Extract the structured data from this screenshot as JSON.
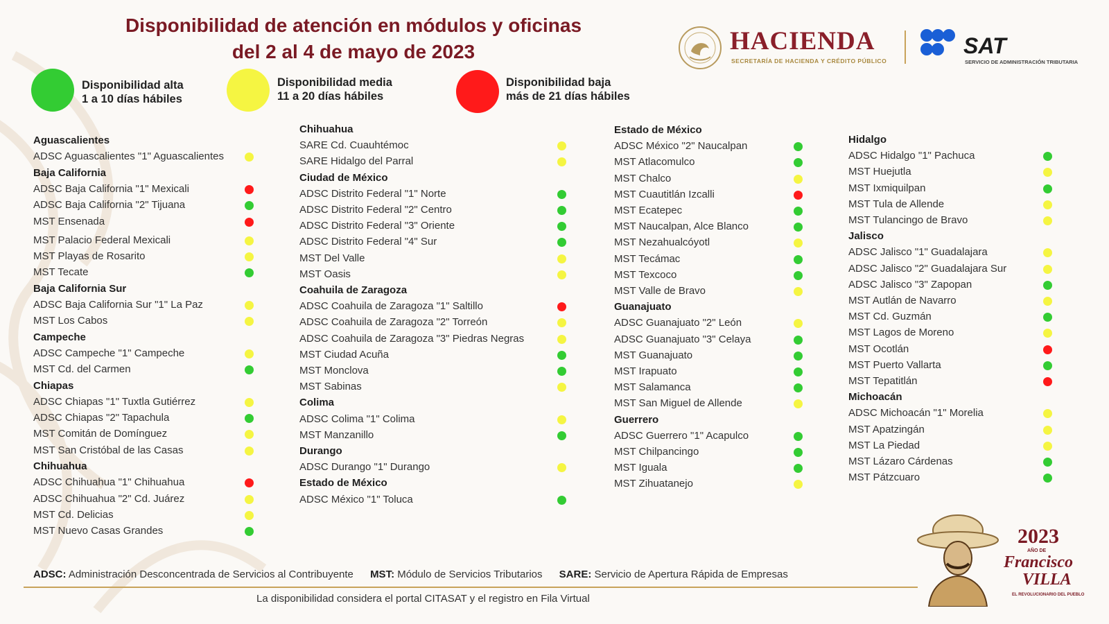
{
  "colors": {
    "alta": "#33cc33",
    "media": "#f5f542",
    "baja": "#ff1a1a",
    "title": "#7a1a24",
    "gold": "#c8a35a"
  },
  "title": {
    "line1": "Disponibilidad de atención en módulos y oficinas",
    "line2": "del 2 al 4 de mayo de 2023"
  },
  "legend": [
    {
      "status": "alta",
      "label1": "Disponibilidad alta",
      "label2": "1 a 10 días hábiles"
    },
    {
      "status": "media",
      "label1": "Disponibilidad media",
      "label2": "11 a 20 días hábiles"
    },
    {
      "status": "baja",
      "label1": "Disponibilidad baja",
      "label2": "más de 21 días hábiles"
    }
  ],
  "logos": {
    "hacienda": "HACIENDA",
    "hacienda_sub": "SECRETARÍA DE HACIENDA Y CRÉDITO PÚBLICO",
    "sat": "SAT",
    "sat_sub": "SERVICIO DE ADMINISTRACIÓN TRIBUTARIA",
    "seal_text": "ESTADOS UNIDOS MEXICANOS"
  },
  "columns": [
    [
      {
        "header": "Aguascalientes"
      },
      {
        "name": "ADSC Aguascalientes \"1\" Aguascalientes",
        "status": "media"
      },
      {
        "header": "Baja California"
      },
      {
        "name": "ADSC Baja California \"1\" Mexicali",
        "status": "baja"
      },
      {
        "name": "ADSC Baja California \"2\" Tijuana",
        "status": "alta"
      },
      {
        "name": "MST Ensenada",
        "status": "baja"
      },
      {
        "name": "MST Palacio Federal Mexicali",
        "status": "media"
      },
      {
        "name": "MST Playas de Rosarito",
        "status": "media"
      },
      {
        "name": "MST Tecate",
        "status": "alta"
      },
      {
        "header": "Baja California Sur"
      },
      {
        "name": "ADSC Baja California Sur \"1\" La Paz",
        "status": "media"
      },
      {
        "name": "MST Los Cabos",
        "status": "media"
      },
      {
        "header": "Campeche"
      },
      {
        "name": "ADSC Campeche \"1\" Campeche",
        "status": "media"
      },
      {
        "name": "MST Cd. del Carmen",
        "status": "alta"
      },
      {
        "header": "Chiapas"
      },
      {
        "name": "ADSC Chiapas \"1\" Tuxtla Gutiérrez",
        "status": "media"
      },
      {
        "name": "ADSC Chiapas \"2\" Tapachula",
        "status": "alta"
      },
      {
        "name": "MST Comitán de Domínguez",
        "status": "media"
      },
      {
        "name": "MST San Cristóbal de las Casas",
        "status": "media"
      },
      {
        "header": "Chihuahua"
      },
      {
        "name": "ADSC Chihuahua \"1\" Chihuahua",
        "status": "baja"
      },
      {
        "name": "ADSC Chihuahua \"2\" Cd. Juárez",
        "status": "media"
      },
      {
        "name": "MST Cd. Delicias",
        "status": "media"
      },
      {
        "name": "MST Nuevo Casas Grandes",
        "status": "alta"
      }
    ],
    [
      {
        "header": "Chihuahua"
      },
      {
        "name": "SARE Cd. Cuauhtémoc",
        "status": "media"
      },
      {
        "name": "SARE Hidalgo del Parral",
        "status": "media"
      },
      {
        "header": "Ciudad de México"
      },
      {
        "name": "ADSC Distrito Federal \"1\" Norte",
        "status": "alta"
      },
      {
        "name": "ADSC Distrito Federal \"2\" Centro",
        "status": "alta"
      },
      {
        "name": "ADSC Distrito Federal \"3\" Oriente",
        "status": "alta"
      },
      {
        "name": "ADSC Distrito Federal \"4\" Sur",
        "status": "alta"
      },
      {
        "name": "MST Del Valle",
        "status": "media"
      },
      {
        "name": "MST Oasis",
        "status": "media"
      },
      {
        "header": "Coahuila de Zaragoza"
      },
      {
        "name": "ADSC Coahuila de Zaragoza \"1\" Saltillo",
        "status": "baja"
      },
      {
        "name": "ADSC Coahuila de Zaragoza \"2\" Torreón",
        "status": "media"
      },
      {
        "name": "ADSC Coahuila de Zaragoza \"3\" Piedras Negras",
        "status": "media"
      },
      {
        "name": "MST Ciudad Acuña",
        "status": "alta"
      },
      {
        "name": "MST Monclova",
        "status": "alta"
      },
      {
        "name": "MST Sabinas",
        "status": "media"
      },
      {
        "header": "Colima"
      },
      {
        "name": "ADSC Colima \"1\" Colima",
        "status": "media"
      },
      {
        "name": "MST Manzanillo",
        "status": "alta"
      },
      {
        "header": "Durango"
      },
      {
        "name": "ADSC Durango \"1\" Durango",
        "status": "media"
      },
      {
        "header": "Estado de México"
      },
      {
        "name": "ADSC México \"1\" Toluca",
        "status": "alta"
      }
    ],
    [
      {
        "header": "Estado de México"
      },
      {
        "name": "ADSC México \"2\" Naucalpan",
        "status": "alta"
      },
      {
        "name": "MST Atlacomulco",
        "status": "alta"
      },
      {
        "name": "MST Chalco",
        "status": "media"
      },
      {
        "name": "MST Cuautitlán Izcalli",
        "status": "baja"
      },
      {
        "name": "MST Ecatepec",
        "status": "alta"
      },
      {
        "name": "MST Naucalpan, Alce Blanco",
        "status": "alta"
      },
      {
        "name": "MST Nezahualcóyotl",
        "status": "media"
      },
      {
        "name": "MST Tecámac",
        "status": "alta"
      },
      {
        "name": "MST Texcoco",
        "status": "alta"
      },
      {
        "name": "MST Valle de Bravo",
        "status": "media"
      },
      {
        "header": "Guanajuato"
      },
      {
        "name": "ADSC Guanajuato \"2\" León",
        "status": "media"
      },
      {
        "name": "ADSC Guanajuato \"3\" Celaya",
        "status": "alta"
      },
      {
        "name": "MST Guanajuato",
        "status": "alta"
      },
      {
        "name": "MST Irapuato",
        "status": "alta"
      },
      {
        "name": "MST Salamanca",
        "status": "alta"
      },
      {
        "name": "MST San Miguel de Allende",
        "status": "media"
      },
      {
        "header": "Guerrero"
      },
      {
        "name": "ADSC Guerrero \"1\" Acapulco",
        "status": "alta"
      },
      {
        "name": "MST Chilpancingo",
        "status": "alta"
      },
      {
        "name": "MST Iguala",
        "status": "alta"
      },
      {
        "name": "MST Zihuatanejo",
        "status": "media"
      }
    ],
    [
      {
        "header": "Hidalgo"
      },
      {
        "name": "ADSC Hidalgo \"1\" Pachuca",
        "status": "alta"
      },
      {
        "name": "MST Huejutla",
        "status": "media"
      },
      {
        "name": "MST Ixmiquilpan",
        "status": "alta"
      },
      {
        "name": "MST Tula de Allende",
        "status": "media"
      },
      {
        "name": "MST Tulancingo de Bravo",
        "status": "media"
      },
      {
        "header": "Jalisco"
      },
      {
        "name": "ADSC Jalisco \"1\" Guadalajara",
        "status": "media"
      },
      {
        "name": "ADSC Jalisco \"2\" Guadalajara Sur",
        "status": "media"
      },
      {
        "name": "ADSC Jalisco \"3\" Zapopan",
        "status": "alta"
      },
      {
        "name": "MST Autlán de Navarro",
        "status": "media"
      },
      {
        "name": "MST Cd. Guzmán",
        "status": "alta"
      },
      {
        "name": "MST Lagos de Moreno",
        "status": "media"
      },
      {
        "name": "MST Ocotlán",
        "status": "baja"
      },
      {
        "name": "MST Puerto Vallarta",
        "status": "alta"
      },
      {
        "name": "MST Tepatitlán",
        "status": "baja"
      },
      {
        "header": "Michoacán"
      },
      {
        "name": "ADSC Michoacán \"1\" Morelia",
        "status": "media"
      },
      {
        "name": "MST Apatzingán",
        "status": "media"
      },
      {
        "name": "MST La Piedad",
        "status": "media"
      },
      {
        "name": "MST Lázaro Cárdenas",
        "status": "alta"
      },
      {
        "name": "MST Pátzcuaro",
        "status": "alta"
      }
    ]
  ],
  "footer": {
    "defs": [
      {
        "abbr": "ADSC:",
        "text": " Administración Desconcentrada de Servicios al Contribuyente"
      },
      {
        "abbr": "MST:",
        "text": " Módulo de Servicios Tributarios"
      },
      {
        "abbr": "SARE:",
        "text": " Servicio de Apertura Rápida de Empresas"
      }
    ],
    "note": "La disponibilidad considera el portal CITASAT y el registro en Fila Virtual"
  },
  "villa": {
    "year": "2023",
    "ano": "AÑO DE",
    "name1": "Francisco",
    "name2": "VILLA",
    "sub": "EL REVOLUCIONARIO DEL PUEBLO"
  }
}
